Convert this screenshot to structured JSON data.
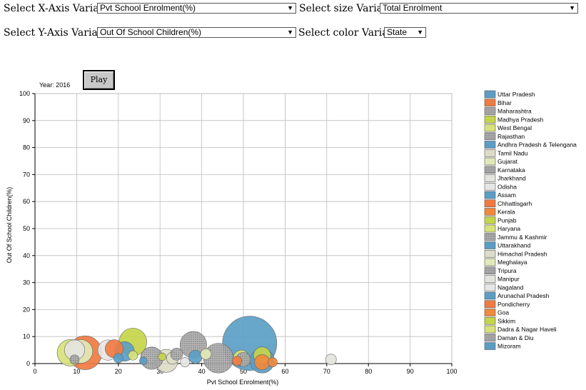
{
  "controls": {
    "x_label": "Select X-Axis Variable",
    "x_value": "Pvt School Enrolment(%)",
    "size_label": "Select size Variable",
    "size_value": "Total Enrolment",
    "y_label": "Select Y-Axis Variable",
    "y_value": "Out Of School Children(%)",
    "color_label": "Select color Variable",
    "color_value": "State"
  },
  "year_label": "Year: 2016",
  "play_label": "Play",
  "chart_data": {
    "type": "scatter",
    "xlabel": "Pvt School Enrolment(%)",
    "ylabel": "Out Of School Children(%)",
    "xlim": [
      0,
      100
    ],
    "ylim": [
      0,
      100
    ],
    "xticks": [
      0,
      10,
      20,
      30,
      40,
      50,
      60,
      70,
      80,
      90,
      100
    ],
    "yticks": [
      0,
      10,
      20,
      30,
      40,
      50,
      60,
      70,
      80,
      90,
      100
    ],
    "grid": true,
    "legend": "right",
    "size_variable": "Total Enrolment",
    "points": [
      {
        "state": "Uttar Pradesh",
        "x": 51.5,
        "y": 7.5,
        "size": 100,
        "color": "#5b9ec5",
        "pattern": "solid"
      },
      {
        "state": "Bihar",
        "x": 12.0,
        "y": 4.0,
        "size": 39,
        "color": "#f07b42",
        "pattern": "solid"
      },
      {
        "state": "Maharashtra",
        "x": 44.0,
        "y": 2.0,
        "size": 30,
        "color": "#f0893e",
        "pattern": "dot"
      },
      {
        "state": "Madhya Pradesh",
        "x": 23.5,
        "y": 8.0,
        "size": 26,
        "color": "#c5d54a",
        "pattern": "solid"
      },
      {
        "state": "West Bengal",
        "x": 8.5,
        "y": 4.0,
        "size": 24,
        "color": "#d7e27a",
        "pattern": "solid"
      },
      {
        "state": "Rajasthan",
        "x": 38.0,
        "y": 7.0,
        "size": 24,
        "color": "#9a9a9a",
        "pattern": "dot"
      },
      {
        "state": "Andhra Pradesh & Telengana",
        "x": 54.5,
        "y": 1.0,
        "size": 20,
        "color": "#5b9ec5",
        "pattern": "solid"
      },
      {
        "state": "Tamil Nadu",
        "x": 31.5,
        "y": 1.0,
        "size": 18,
        "color": "#dcdcc8",
        "pattern": "solid"
      },
      {
        "state": "Gujarat",
        "x": 11.0,
        "y": 4.5,
        "size": 19,
        "color": "#e2e9b8",
        "pattern": "solid"
      },
      {
        "state": "Karnataka",
        "x": 28.0,
        "y": 2.0,
        "size": 17,
        "color": "#a8a8a8",
        "pattern": "dot"
      },
      {
        "state": "Jharkhand",
        "x": 9.5,
        "y": 5.0,
        "size": 14,
        "color": "#e4e4de",
        "pattern": "solid"
      },
      {
        "state": "Odisha",
        "x": 17.5,
        "y": 5.0,
        "size": 14,
        "color": "#e6e6e6",
        "pattern": "solid"
      },
      {
        "state": "Assam",
        "x": 21.5,
        "y": 4.5,
        "size": 13,
        "color": "#5b9ec5",
        "pattern": "solid"
      },
      {
        "state": "Chhattisgarh",
        "x": 19.0,
        "y": 5.5,
        "size": 11,
        "color": "#f07b42",
        "pattern": "solid"
      },
      {
        "state": "Kerala",
        "x": 54.5,
        "y": 0.5,
        "size": 8,
        "color": "#f0893e",
        "pattern": "solid"
      },
      {
        "state": "Punjab",
        "x": 54.5,
        "y": 3.0,
        "size": 10,
        "color": "#c5d54a",
        "pattern": "solid"
      },
      {
        "state": "Haryana",
        "x": 49.5,
        "y": 2.0,
        "size": 9,
        "color": "#d7e27a",
        "pattern": "solid"
      },
      {
        "state": "Jammu & Kashmir",
        "x": 50.0,
        "y": 1.5,
        "size": 7,
        "color": "#9a9a9a",
        "pattern": "dot"
      },
      {
        "state": "Uttarakhand",
        "x": 38.5,
        "y": 2.5,
        "size": 6,
        "color": "#5b9ec5",
        "pattern": "solid"
      },
      {
        "state": "Himachal Pradesh",
        "x": 33.0,
        "y": 2.0,
        "size": 5,
        "color": "#dcdcc8",
        "pattern": "solid"
      },
      {
        "state": "Meghalaya",
        "x": 41.0,
        "y": 3.5,
        "size": 4,
        "color": "#e2e9b8",
        "pattern": "solid"
      },
      {
        "state": "Tripura",
        "x": 34.0,
        "y": 3.5,
        "size": 5,
        "color": "#a8a8a8",
        "pattern": "dot"
      },
      {
        "state": "Manipur",
        "x": 71.0,
        "y": 1.5,
        "size": 4,
        "color": "#e4e4de",
        "pattern": "solid"
      },
      {
        "state": "Nagaland",
        "x": 36.0,
        "y": 0.5,
        "size": 3,
        "color": "#e6e6e6",
        "pattern": "solid"
      },
      {
        "state": "Arunachal Pradesh",
        "x": 20.0,
        "y": 2.0,
        "size": 3,
        "color": "#5b9ec5",
        "pattern": "solid"
      },
      {
        "state": "Pondicherry",
        "x": 48.5,
        "y": 1.0,
        "size": 3,
        "color": "#f07b42",
        "pattern": "solid"
      },
      {
        "state": "Goa",
        "x": 57.0,
        "y": 0.5,
        "size": 3,
        "color": "#f0893e",
        "pattern": "solid"
      },
      {
        "state": "Sikkim",
        "x": 30.5,
        "y": 2.5,
        "size": 2,
        "color": "#c5d54a",
        "pattern": "solid"
      },
      {
        "state": "Dadra & Nagar Haveli",
        "x": 23.5,
        "y": 3.0,
        "size": 3,
        "color": "#d7e27a",
        "pattern": "solid"
      },
      {
        "state": "Daman & Diu",
        "x": 9.5,
        "y": 1.5,
        "size": 3,
        "color": "#9a9a9a",
        "pattern": "dot"
      },
      {
        "state": "Mizoram",
        "x": 26.0,
        "y": 1.0,
        "size": 2,
        "color": "#5b9ec5",
        "pattern": "solid"
      }
    ]
  }
}
